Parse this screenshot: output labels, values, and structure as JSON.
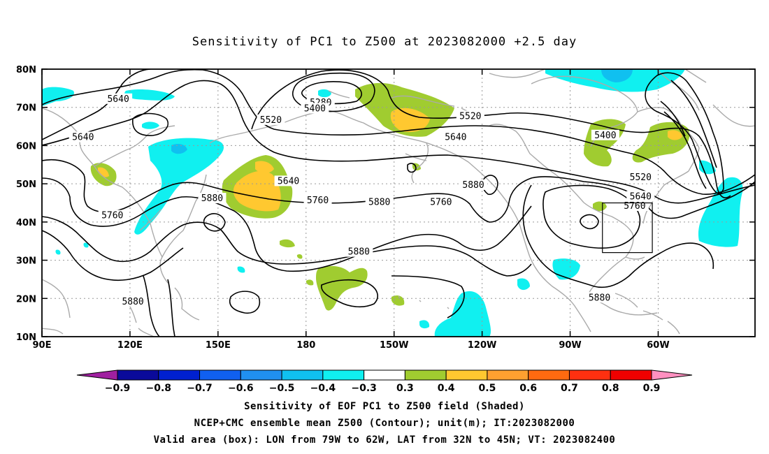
{
  "title": "Sensitivity of PC1 to Z500 at 2023082000 +2.5 day",
  "lat_ticks": [
    "80N",
    "70N",
    "60N",
    "50N",
    "40N",
    "30N",
    "20N",
    "10N"
  ],
  "lon_ticks": [
    "90E",
    "120E",
    "150E",
    "180",
    "150W",
    "120W",
    "90W",
    "60W"
  ],
  "contour_labels": [
    {
      "text": "5640",
      "lon": 116,
      "lat": 72
    },
    {
      "text": "5280",
      "lon": 185,
      "lat": 71
    },
    {
      "text": "5400",
      "lon": 183,
      "lat": 69.5
    },
    {
      "text": "5520",
      "lon": 168,
      "lat": 66.5
    },
    {
      "text": "5520",
      "lon": 236,
      "lat": 67.5
    },
    {
      "text": "5640",
      "lon": 104,
      "lat": 62
    },
    {
      "text": "5640",
      "lon": 231,
      "lat": 62
    },
    {
      "text": "5400",
      "lon": 282,
      "lat": 62.5
    },
    {
      "text": "5520",
      "lon": 294,
      "lat": 51.5
    },
    {
      "text": "5640",
      "lon": 174,
      "lat": 50.5
    },
    {
      "text": "5880",
      "lon": 237,
      "lat": 49.5
    },
    {
      "text": "5640",
      "lon": 294,
      "lat": 46.5
    },
    {
      "text": "5880",
      "lon": 148,
      "lat": 46
    },
    {
      "text": "5760",
      "lon": 184,
      "lat": 45.5
    },
    {
      "text": "5880",
      "lon": 205,
      "lat": 45
    },
    {
      "text": "5760",
      "lon": 226,
      "lat": 45
    },
    {
      "text": "5760",
      "lon": 292,
      "lat": 44
    },
    {
      "text": "5760",
      "lon": 114,
      "lat": 41.5
    },
    {
      "text": "5880",
      "lon": 198,
      "lat": 32
    },
    {
      "text": "5880",
      "lon": 280,
      "lat": 20
    },
    {
      "text": "5880",
      "lon": 121,
      "lat": 19
    }
  ],
  "valid_box": {
    "lon_from": -79,
    "lon_to": -62,
    "lat_from": 32,
    "lat_to": 45
  },
  "colorbar": {
    "labels": [
      "−0.9",
      "−0.8",
      "−0.7",
      "−0.6",
      "−0.5",
      "−0.4",
      "−0.3",
      "0.3",
      "0.4",
      "0.5",
      "0.6",
      "0.7",
      "0.8",
      "0.9"
    ],
    "colors": [
      "#a020a0",
      "#0a0a9a",
      "#0020d0",
      "#1060f0",
      "#2090f0",
      "#10c0f0",
      "#10f0f0",
      "#ffffff",
      "#a0cc30",
      "#ffc830",
      "#ffa030",
      "#ff6a10",
      "#ff3010",
      "#f00000",
      "#ff90c0"
    ]
  },
  "caption": {
    "line1": "Sensitivity of EOF PC1 to Z500 field (Shaded)",
    "line2": "NCEP+CMC ensemble mean Z500 (Contour); unit(m); IT:2023082000",
    "line3": "Valid area (box): LON from 79W to 62W, LAT from 32N to 45N; VT: 2023082400"
  }
}
